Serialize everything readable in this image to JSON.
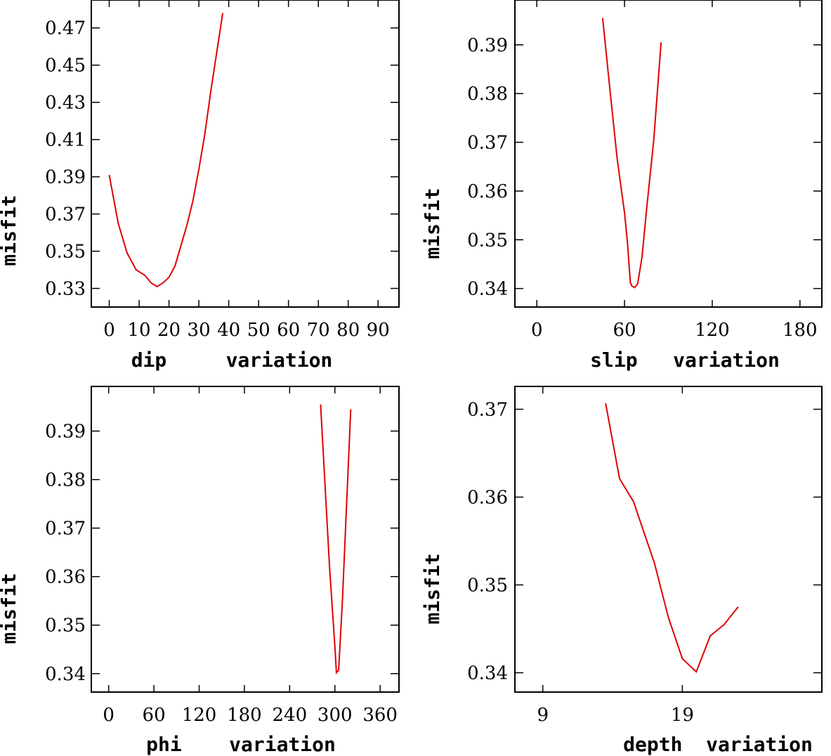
{
  "chart_data": [
    {
      "type": "line",
      "xlabel": "dip     variation",
      "ylabel": "misfit",
      "xlim": [
        -6,
        97
      ],
      "ylim": [
        0.32,
        0.485
      ],
      "xticks": [
        0,
        10,
        20,
        30,
        40,
        50,
        60,
        70,
        80,
        90
      ],
      "xtick_labels": [
        "0",
        "10",
        "20",
        "30",
        "40",
        "50",
        "60",
        "70",
        "80",
        "90"
      ],
      "yticks": [
        0.33,
        0.35,
        0.37,
        0.39,
        0.41,
        0.43,
        0.45,
        0.47
      ],
      "ytick_labels": [
        "0.33",
        "0.35",
        "0.37",
        "0.39",
        "0.41",
        "0.43",
        "0.45",
        "0.47"
      ],
      "x": [
        0,
        3,
        6,
        9,
        12,
        14,
        15,
        16,
        18,
        20,
        22,
        24,
        26,
        28,
        30,
        32,
        34,
        36,
        38
      ],
      "values": [
        0.391,
        0.365,
        0.349,
        0.34,
        0.337,
        0.333,
        0.332,
        0.331,
        0.333,
        0.336,
        0.342,
        0.353,
        0.364,
        0.377,
        0.394,
        0.413,
        0.436,
        0.457,
        0.478
      ]
    },
    {
      "type": "line",
      "xlabel": "slip   variation",
      "ylabel": "misfit",
      "xlim": [
        -15,
        195
      ],
      "ylim": [
        0.3362,
        0.3992
      ],
      "xticks": [
        0,
        60,
        120,
        180
      ],
      "xtick_labels": [
        "0",
        "60",
        "120",
        "180"
      ],
      "yticks": [
        0.34,
        0.35,
        0.36,
        0.37,
        0.38,
        0.39
      ],
      "ytick_labels": [
        "0.34",
        "0.35",
        "0.36",
        "0.37",
        "0.38",
        "0.39"
      ],
      "x": [
        45,
        50,
        55,
        60,
        62,
        64,
        65,
        67,
        69,
        72,
        75,
        80,
        85
      ],
      "values": [
        0.3955,
        0.3808,
        0.3665,
        0.3555,
        0.3495,
        0.3412,
        0.3405,
        0.3402,
        0.341,
        0.3465,
        0.356,
        0.3705,
        0.3905
      ]
    },
    {
      "type": "line",
      "xlabel": "phi    variation",
      "ylabel": "misfit",
      "xlim": [
        -23,
        385
      ],
      "ylim": [
        0.3362,
        0.3992
      ],
      "xticks": [
        0,
        60,
        120,
        180,
        240,
        300,
        360
      ],
      "xtick_labels": [
        "0",
        "60",
        "120",
        "180",
        "240",
        "300",
        "360"
      ],
      "yticks": [
        0.34,
        0.35,
        0.36,
        0.37,
        0.38,
        0.39
      ],
      "ytick_labels": [
        "0.34",
        "0.35",
        "0.36",
        "0.37",
        "0.38",
        "0.39"
      ],
      "x": [
        281,
        293,
        300,
        302,
        305,
        310,
        321
      ],
      "values": [
        0.3955,
        0.3618,
        0.3455,
        0.3402,
        0.3407,
        0.3552,
        0.3945
      ]
    },
    {
      "type": "line",
      "xlabel": "depth  variation",
      "ylabel": "misfit",
      "xlim": [
        7,
        29
      ],
      "ylim": [
        0.3378,
        0.3726
      ],
      "xticks": [
        9,
        19
      ],
      "xtick_labels": [
        "9",
        "19"
      ],
      "yticks": [
        0.34,
        0.35,
        0.36,
        0.37
      ],
      "ytick_labels": [
        "0.34",
        "0.35",
        "0.36",
        "0.37"
      ],
      "x": [
        13.5,
        14.5,
        15.5,
        17,
        18,
        19,
        20,
        21,
        22,
        23
      ],
      "values": [
        0.3707,
        0.3621,
        0.3595,
        0.3525,
        0.3463,
        0.3416,
        0.3401,
        0.3442,
        0.3455,
        0.3475
      ]
    }
  ]
}
